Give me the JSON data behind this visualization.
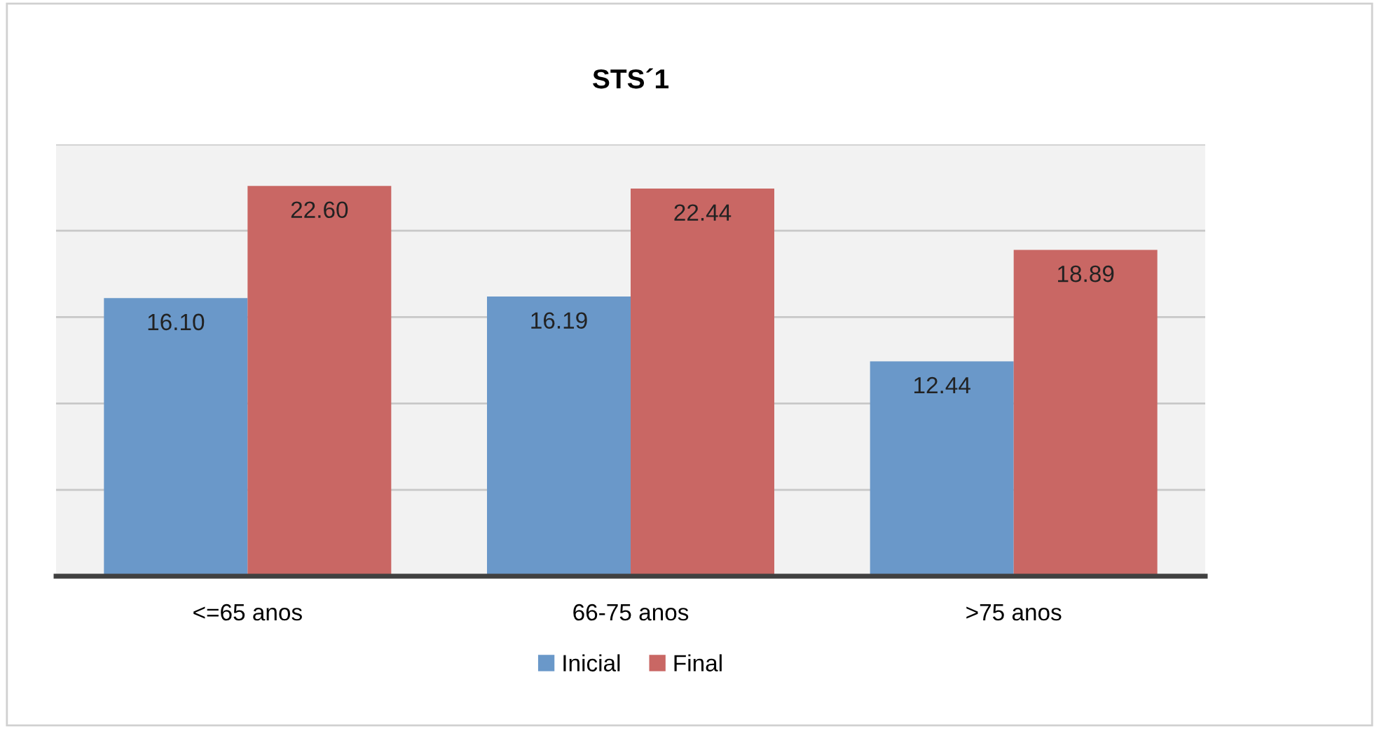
{
  "chart_data": {
    "type": "bar",
    "title": "STS´1",
    "categories": [
      "<=65 anos",
      "66-75 anos",
      ">75 anos"
    ],
    "series": [
      {
        "name": "Inicial",
        "color": "#6a98c9",
        "values": [
          16.1,
          16.19,
          12.44
        ],
        "value_labels": [
          "16.10",
          "16.19",
          "12.44"
        ]
      },
      {
        "name": "Final",
        "color": "#c96764",
        "values": [
          22.6,
          22.44,
          18.89
        ],
        "value_labels": [
          "22.60",
          "22.44",
          "18.89"
        ]
      }
    ],
    "ylim": [
      0,
      25
    ],
    "yticks": [
      {
        "value": 0,
        "label": null
      },
      {
        "value": 5,
        "label": null
      },
      {
        "value": 10,
        "label": null
      },
      {
        "value": 15,
        "label": null
      },
      {
        "value": 20,
        "label": null
      },
      {
        "value": 25,
        "label": null
      }
    ],
    "tick_labels": "x",
    "grid": "y",
    "legend": "bottom"
  }
}
